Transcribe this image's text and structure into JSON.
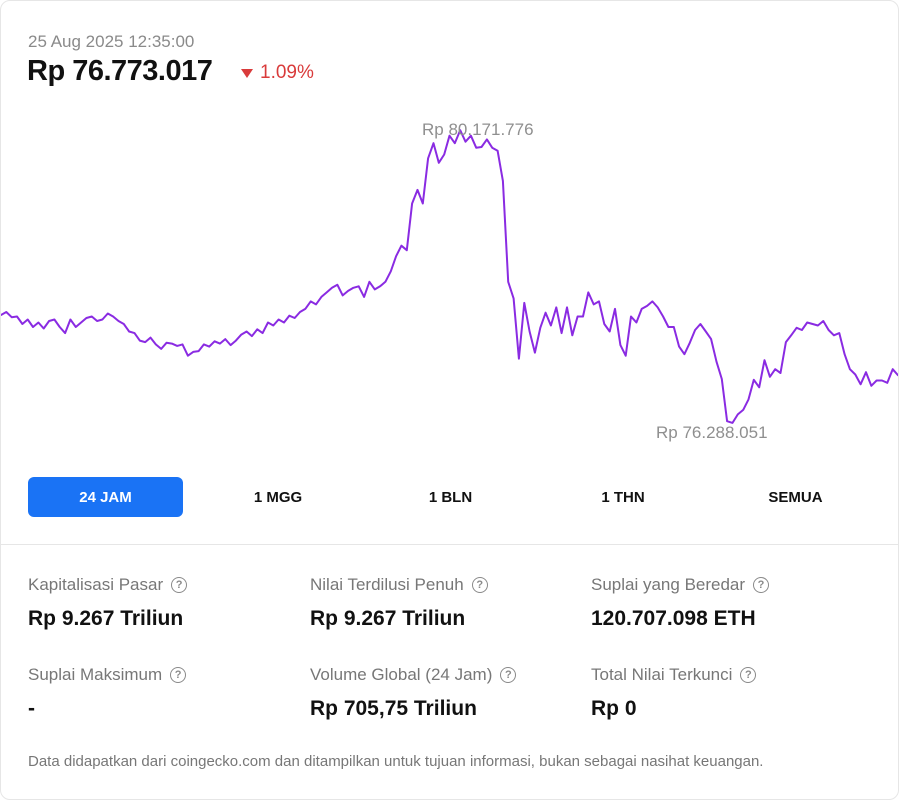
{
  "header": {
    "timestamp": "25 Aug 2025 12:35:00",
    "price": "Rp 76.773.017",
    "change": "1.09%",
    "change_direction": "down"
  },
  "colors": {
    "line": "#8a2be2",
    "change_negative": "#d93b3b",
    "active_tab": "#1a73f5"
  },
  "chart_data": {
    "type": "line",
    "title": "",
    "xlabel": "",
    "ylabel": "",
    "grid": false,
    "annotations": {
      "max_label": "Rp 80.171.776",
      "min_label": "Rp 76.288.051"
    },
    "ylim": [
      76180000,
      80560000
    ],
    "series": [
      {
        "values": [
          77720000,
          77760000,
          77690000,
          77700000,
          77600000,
          77660000,
          77560000,
          77620000,
          77540000,
          77640000,
          77660000,
          77560000,
          77480000,
          77660000,
          77560000,
          77620000,
          77680000,
          77700000,
          77640000,
          77660000,
          77740000,
          77700000,
          77640000,
          77600000,
          77500000,
          77480000,
          77380000,
          77360000,
          77420000,
          77330000,
          77270000,
          77350000,
          77340000,
          77310000,
          77330000,
          77180000,
          77230000,
          77240000,
          77330000,
          77300000,
          77370000,
          77340000,
          77400000,
          77320000,
          77380000,
          77460000,
          77500000,
          77440000,
          77530000,
          77480000,
          77620000,
          77580000,
          77660000,
          77620000,
          77710000,
          77680000,
          77760000,
          77800000,
          77900000,
          77860000,
          77960000,
          78020000,
          78080000,
          78120000,
          77980000,
          78040000,
          78080000,
          78100000,
          77960000,
          78160000,
          78060000,
          78100000,
          78160000,
          78300000,
          78500000,
          78640000,
          78580000,
          79200000,
          79380000,
          79200000,
          79800000,
          80000000,
          79740000,
          79850000,
          80100000,
          80000000,
          80171776,
          80020000,
          80100000,
          79940000,
          79950000,
          80050000,
          79940000,
          79900000,
          79500000,
          78160000,
          77940000,
          77140000,
          77880000,
          77500000,
          77220000,
          77550000,
          77750000,
          77580000,
          77820000,
          77480000,
          77820000,
          77450000,
          77700000,
          77700000,
          78020000,
          77860000,
          77900000,
          77600000,
          77500000,
          77800000,
          77320000,
          77180000,
          77700000,
          77620000,
          77800000,
          77840000,
          77900000,
          77820000,
          77700000,
          77560000,
          77560000,
          77300000,
          77200000,
          77350000,
          77520000,
          77600000,
          77500000,
          77400000,
          77100000,
          76870000,
          76310000,
          76288051,
          76400000,
          76460000,
          76600000,
          76860000,
          76760000,
          77120000,
          76900000,
          77000000,
          76950000,
          77360000,
          77450000,
          77550000,
          77520000,
          77620000,
          77600000,
          77580000,
          77640000,
          77520000,
          77450000,
          77480000,
          77200000,
          77000000,
          76930000,
          76800000,
          76960000,
          76780000,
          76850000,
          76850000,
          76820000,
          77000000,
          76920000
        ]
      }
    ]
  },
  "ranges": [
    {
      "label": "24 JAM",
      "active": true
    },
    {
      "label": "1 MGG",
      "active": false
    },
    {
      "label": "1 BLN",
      "active": false
    },
    {
      "label": "1 THN",
      "active": false
    },
    {
      "label": "SEMUA",
      "active": false
    }
  ],
  "stats": [
    {
      "label": "Kapitalisasi Pasar",
      "value": "Rp 9.267 Triliun"
    },
    {
      "label": "Nilai Terdilusi Penuh",
      "value": "Rp 9.267 Triliun"
    },
    {
      "label": "Suplai yang Beredar",
      "value": "120.707.098 ETH"
    },
    {
      "label": "Suplai Maksimum",
      "value": "-"
    },
    {
      "label": "Volume Global (24 Jam)",
      "value": "Rp 705,75 Triliun"
    },
    {
      "label": "Total Nilai Terkunci",
      "value": "Rp 0"
    }
  ],
  "help_icon": "?",
  "footer": "Data didapatkan dari coingecko.com dan ditampilkan untuk tujuan informasi, bukan sebagai nasihat keuangan."
}
